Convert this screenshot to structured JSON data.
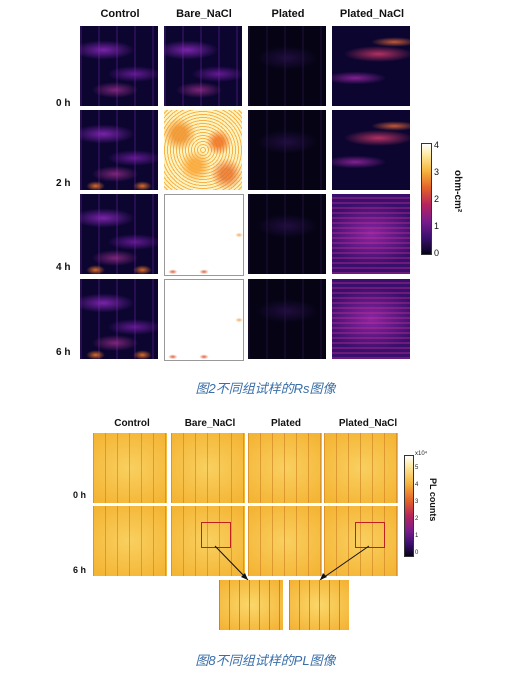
{
  "fig1": {
    "columns": [
      "Control",
      "Bare_NaCl",
      "Plated",
      "Plated_NaCl"
    ],
    "rows": [
      "0 h",
      "2 h",
      "4 h",
      "6 h"
    ],
    "colorbar": {
      "title": "ohm-cm²",
      "ticks": [
        "4",
        "3",
        "2",
        "1",
        "0"
      ]
    },
    "caption": "图2不同组试样的Rs图像"
  },
  "fig2": {
    "columns": [
      "Control",
      "Bare_NaCl",
      "Plated",
      "Plated_NaCl"
    ],
    "rows": [
      "0 h",
      "6 h"
    ],
    "colorbar": {
      "title": "PL counts",
      "ticks": [
        "5",
        "4",
        "3",
        "2",
        "1",
        "0"
      ],
      "exponent": "x10⁴"
    },
    "caption": "图8不同组试样的PL图像"
  },
  "colors": {
    "caption": "#3a6ea8",
    "dark": "#0b0530",
    "purple": "#5a1a8a",
    "orange": "#f2a020",
    "yellow": "#f6c23a"
  }
}
